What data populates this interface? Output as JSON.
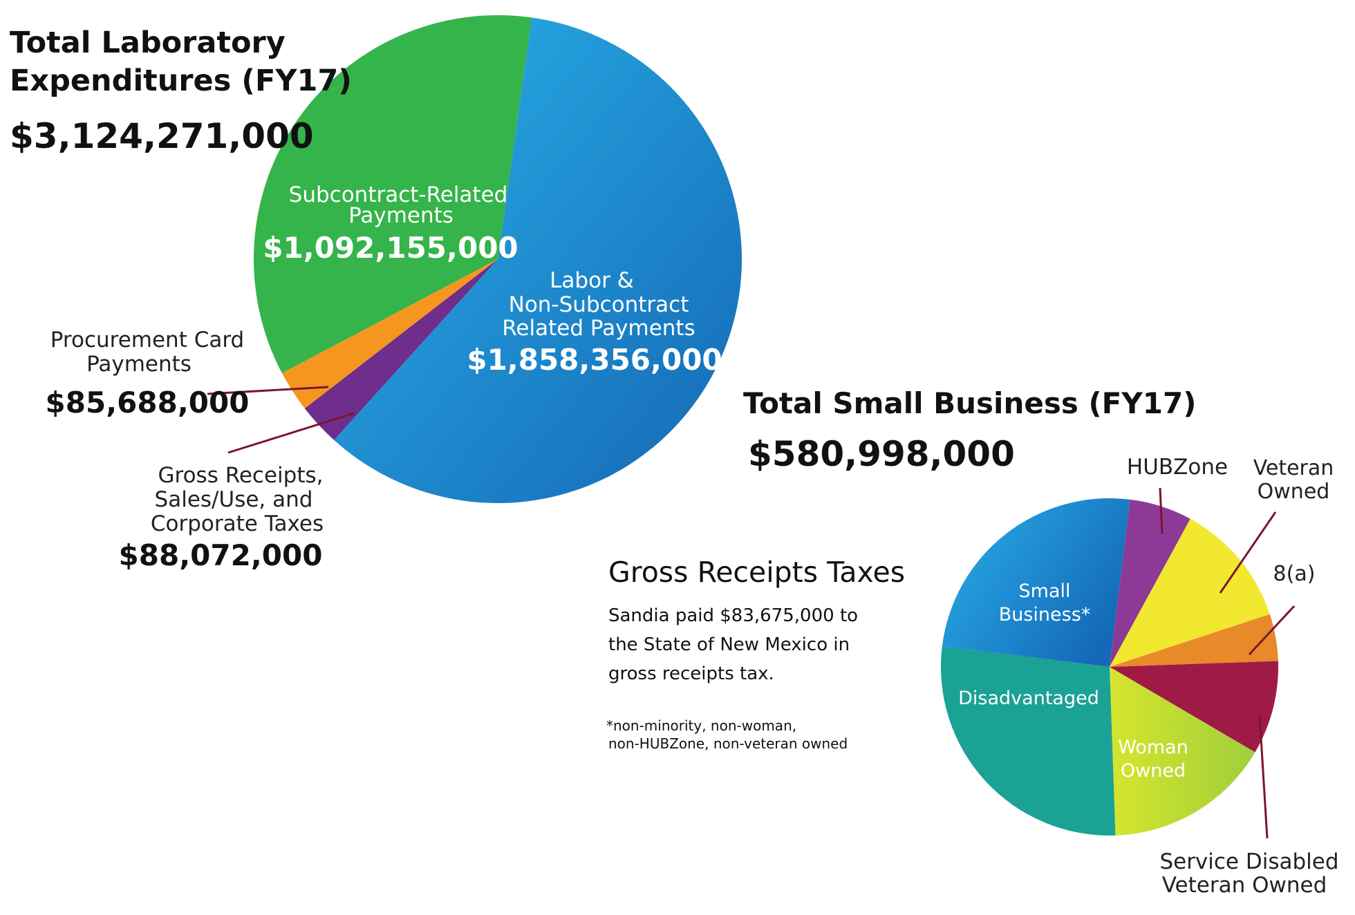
{
  "chart_data": [
    {
      "type": "pie",
      "title": "Total Laboratory Expenditures (FY17)",
      "title_lines": [
        "Total Laboratory",
        "Expenditures (FY17)"
      ],
      "total": "$3,124,271,000",
      "slices": [
        {
          "name_lines": [
            "Labor &",
            "Non-Subcontract",
            "Related Payments"
          ],
          "amount": "$1,858,356,000",
          "value": 1858356000,
          "color": "#1f8fd6"
        },
        {
          "name_lines": [
            "Gross Receipts,",
            "Sales/Use, and",
            "Corporate Taxes"
          ],
          "amount": "$88,072,000",
          "value": 88072000,
          "color": "#6f2d8c"
        },
        {
          "name_lines": [
            "Procurement Card",
            "Payments"
          ],
          "amount": "$85,688,000",
          "value": 85688000,
          "color": "#f5961e"
        },
        {
          "name_lines": [
            "Subcontract-Related",
            "Payments"
          ],
          "amount": "$1,092,155,000",
          "value": 1092155000,
          "color": "#34b44a"
        }
      ]
    },
    {
      "type": "pie",
      "title": "Total Small Business (FY17)",
      "total": "$580,998,000",
      "slices": [
        {
          "name_lines": [
            "HUBZone"
          ],
          "value": 6.0,
          "color": "#8c3a96"
        },
        {
          "name_lines": [
            "Veteran",
            "Owned"
          ],
          "value": 12.0,
          "color": "#f2e830"
        },
        {
          "name_lines": [
            "8(a)"
          ],
          "value": 4.5,
          "color": "#e8892a"
        },
        {
          "name_lines": [
            "Service Disabled",
            "Veteran Owned"
          ],
          "value": 9.0,
          "color": "#a01a46"
        },
        {
          "name_lines": [
            "Woman",
            "Owned"
          ],
          "value": 16.0,
          "color": "#b8d832"
        },
        {
          "name_lines": [
            "Disadvantaged"
          ],
          "value": 27.5,
          "color": "#1aa294"
        },
        {
          "name_lines": [
            "Small",
            "Business*"
          ],
          "value": 25.0,
          "color": "#2196d8"
        }
      ]
    }
  ],
  "gross_receipts": {
    "heading": "Gross Receipts Taxes",
    "lines": [
      "Sandia paid $83,675,000 to",
      "the State of New Mexico in",
      "gross receipts tax."
    ]
  },
  "footnote": {
    "lines": [
      "*non-minority, non-woman,",
      "non-HUBZone, non-veteran owned"
    ]
  },
  "colors": {
    "leader": "#7a1530",
    "text": "#111111"
  }
}
